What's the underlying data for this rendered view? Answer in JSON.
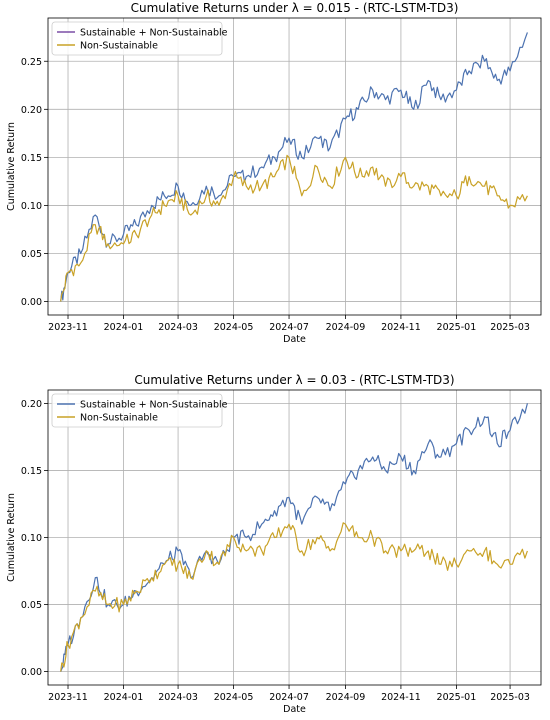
{
  "colors": {
    "combined": "#4c72b0",
    "non_sustainable": "#c9a227",
    "combined_legend": "#7b4fa5"
  },
  "chart_data": [
    {
      "type": "line",
      "title": "Cumulative Returns under λ = 0.015 - (RTC-LSTM-TD3)",
      "xlabel": "Date",
      "ylabel": "Cumulative Return",
      "xlim": [
        "2023-10-10",
        "2025-04-04"
      ],
      "ylim": [
        -0.014,
        0.295
      ],
      "xticks": [
        "2023-11",
        "2024-01",
        "2024-03",
        "2024-05",
        "2024-07",
        "2024-09",
        "2024-11",
        "2025-01",
        "2025-03"
      ],
      "yticks": [
        "0.00",
        "0.05",
        "0.10",
        "0.15",
        "0.20",
        "0.25"
      ],
      "ytick_values": [
        0,
        0.05,
        0.1,
        0.15,
        0.2,
        0.25
      ],
      "grid": true,
      "legend": "top-left",
      "series": [
        {
          "name": "Sustainable + Non-Sustainable",
          "x": [
            "2023-10-24",
            "2023-11-01",
            "2023-11-15",
            "2023-12-01",
            "2023-12-15",
            "2024-01-01",
            "2024-01-15",
            "2024-02-01",
            "2024-02-15",
            "2024-03-01",
            "2024-03-15",
            "2024-04-01",
            "2024-04-15",
            "2024-05-01",
            "2024-05-15",
            "2024-06-01",
            "2024-06-15",
            "2024-07-01",
            "2024-07-15",
            "2024-08-01",
            "2024-08-15",
            "2024-09-01",
            "2024-09-15",
            "2024-10-01",
            "2024-10-15",
            "2024-11-01",
            "2024-11-15",
            "2024-12-01",
            "2024-12-15",
            "2025-01-01",
            "2025-01-15",
            "2025-02-01",
            "2025-02-15",
            "2025-03-01",
            "2025-03-20"
          ],
          "y": [
            0.0,
            0.03,
            0.05,
            0.09,
            0.06,
            0.07,
            0.08,
            0.1,
            0.11,
            0.12,
            0.1,
            0.12,
            0.11,
            0.13,
            0.13,
            0.14,
            0.15,
            0.17,
            0.15,
            0.17,
            0.16,
            0.19,
            0.2,
            0.22,
            0.21,
            0.22,
            0.2,
            0.23,
            0.21,
            0.22,
            0.24,
            0.25,
            0.23,
            0.24,
            0.28
          ]
        },
        {
          "name": "Non-Sustainable",
          "x": [
            "2023-10-24",
            "2023-11-01",
            "2023-11-15",
            "2023-12-01",
            "2023-12-15",
            "2024-01-01",
            "2024-01-15",
            "2024-02-01",
            "2024-02-15",
            "2024-03-01",
            "2024-03-15",
            "2024-04-01",
            "2024-04-15",
            "2024-05-01",
            "2024-05-15",
            "2024-06-01",
            "2024-06-15",
            "2024-07-01",
            "2024-07-15",
            "2024-08-01",
            "2024-08-15",
            "2024-09-01",
            "2024-09-15",
            "2024-10-01",
            "2024-10-15",
            "2024-11-01",
            "2024-11-15",
            "2024-12-01",
            "2024-12-15",
            "2025-01-01",
            "2025-01-15",
            "2025-02-01",
            "2025-02-15",
            "2025-03-01",
            "2025-03-20"
          ],
          "y": [
            0.0,
            0.03,
            0.04,
            0.08,
            0.06,
            0.06,
            0.07,
            0.09,
            0.1,
            0.11,
            0.09,
            0.11,
            0.1,
            0.13,
            0.12,
            0.12,
            0.13,
            0.15,
            0.11,
            0.14,
            0.12,
            0.15,
            0.13,
            0.14,
            0.12,
            0.13,
            0.12,
            0.12,
            0.11,
            0.11,
            0.13,
            0.12,
            0.11,
            0.1,
            0.11
          ]
        }
      ]
    },
    {
      "type": "line",
      "title": "Cumulative Returns under λ = 0.03 - (RTC-LSTM-TD3)",
      "xlabel": "Date",
      "ylabel": "Cumulative Return",
      "xlim": [
        "2023-10-10",
        "2025-04-04"
      ],
      "ylim": [
        -0.01,
        0.21
      ],
      "xticks": [
        "2023-11",
        "2024-01",
        "2024-03",
        "2024-05",
        "2024-07",
        "2024-09",
        "2024-11",
        "2025-01",
        "2025-03"
      ],
      "yticks": [
        "0.00",
        "0.05",
        "0.10",
        "0.15",
        "0.20"
      ],
      "ytick_values": [
        0,
        0.05,
        0.1,
        0.15,
        0.2
      ],
      "grid": true,
      "legend": "top-left",
      "series": [
        {
          "name": "Sustainable + Non-Sustainable",
          "x": [
            "2023-10-24",
            "2023-11-01",
            "2023-11-15",
            "2023-12-01",
            "2023-12-15",
            "2024-01-01",
            "2024-01-15",
            "2024-02-01",
            "2024-02-15",
            "2024-03-01",
            "2024-03-15",
            "2024-04-01",
            "2024-04-15",
            "2024-05-01",
            "2024-05-15",
            "2024-06-01",
            "2024-06-15",
            "2024-07-01",
            "2024-07-15",
            "2024-08-01",
            "2024-08-15",
            "2024-09-01",
            "2024-09-15",
            "2024-10-01",
            "2024-10-15",
            "2024-11-01",
            "2024-11-15",
            "2024-12-01",
            "2024-12-15",
            "2025-01-01",
            "2025-01-15",
            "2025-02-01",
            "2025-02-15",
            "2025-03-01",
            "2025-03-20"
          ],
          "y": [
            0.0,
            0.02,
            0.04,
            0.07,
            0.05,
            0.05,
            0.06,
            0.07,
            0.08,
            0.09,
            0.07,
            0.09,
            0.08,
            0.1,
            0.1,
            0.11,
            0.12,
            0.13,
            0.11,
            0.13,
            0.12,
            0.14,
            0.15,
            0.16,
            0.15,
            0.16,
            0.15,
            0.17,
            0.16,
            0.17,
            0.18,
            0.19,
            0.17,
            0.18,
            0.2
          ]
        },
        {
          "name": "Non-Sustainable",
          "x": [
            "2023-10-24",
            "2023-11-01",
            "2023-11-15",
            "2023-12-01",
            "2023-12-15",
            "2024-01-01",
            "2024-01-15",
            "2024-02-01",
            "2024-02-15",
            "2024-03-01",
            "2024-03-15",
            "2024-04-01",
            "2024-04-15",
            "2024-05-01",
            "2024-05-15",
            "2024-06-01",
            "2024-06-15",
            "2024-07-01",
            "2024-07-15",
            "2024-08-01",
            "2024-08-15",
            "2024-09-01",
            "2024-09-15",
            "2024-10-01",
            "2024-10-15",
            "2024-11-01",
            "2024-11-15",
            "2024-12-01",
            "2024-12-15",
            "2025-01-01",
            "2025-01-15",
            "2025-02-01",
            "2025-02-15",
            "2025-03-01",
            "2025-03-20"
          ],
          "y": [
            0.0,
            0.02,
            0.04,
            0.06,
            0.05,
            0.05,
            0.06,
            0.07,
            0.08,
            0.08,
            0.07,
            0.09,
            0.08,
            0.1,
            0.09,
            0.09,
            0.1,
            0.11,
            0.09,
            0.1,
            0.09,
            0.11,
            0.1,
            0.1,
            0.09,
            0.09,
            0.09,
            0.09,
            0.08,
            0.08,
            0.09,
            0.09,
            0.08,
            0.08,
            0.09
          ]
        }
      ]
    }
  ]
}
